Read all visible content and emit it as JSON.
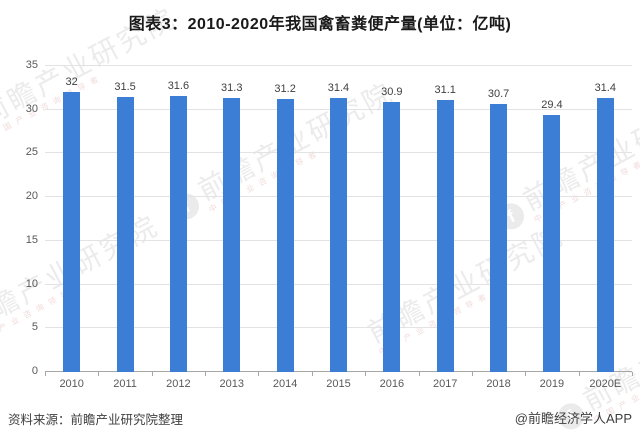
{
  "title": "图表3：2010-2020年我国禽畜粪便产量(单位：亿吨)",
  "chart_data": {
    "type": "bar",
    "categories": [
      "2010",
      "2011",
      "2012",
      "2013",
      "2014",
      "2015",
      "2016",
      "2017",
      "2018",
      "2019",
      "2020E"
    ],
    "values": [
      32,
      31.5,
      31.6,
      31.3,
      31.2,
      31.4,
      30.9,
      31.1,
      30.7,
      29.4,
      31.4
    ],
    "title": "图表3：2010-2020年我国禽畜粪便产量(单位：亿吨)",
    "xlabel": "",
    "ylabel": "",
    "ylim": [
      0,
      35
    ],
    "yticks": [
      0,
      5,
      10,
      15,
      20,
      25,
      30,
      35
    ],
    "grid": true,
    "legend": "none",
    "bar_color": "#3c7ed6",
    "gridline_color": "#e3e3e3",
    "axis_line_color": "#a6a6a6",
    "tick_label_color": "#595959",
    "value_label_color": "#404040"
  },
  "footer": {
    "source": "资料来源：前瞻产业研究院整理",
    "credit": "@前瞻经济学人APP"
  },
  "watermark": {
    "logo_glyph": "f",
    "text": "前瞻产业研究院",
    "sub_text": "中国产业咨询领导者"
  }
}
